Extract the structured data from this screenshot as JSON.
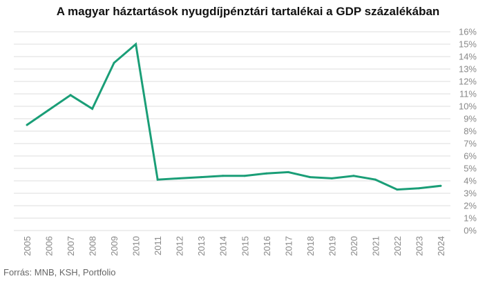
{
  "chart_data": {
    "type": "line",
    "title": "A magyar háztartások nyugdíjpénztári tartalékai a GDP százalékában",
    "source": "Forrás: MNB, KSH, Portfolio",
    "x": [
      "2005",
      "2006",
      "2007",
      "2008",
      "2009",
      "2010",
      "2011",
      "2012",
      "2013",
      "2014",
      "2015",
      "2016",
      "2017",
      "2018",
      "2019",
      "2020",
      "2021",
      "2022",
      "2023",
      "2024"
    ],
    "series": [
      {
        "values": [
          8.5,
          9.7,
          10.9,
          9.8,
          13.5,
          15.0,
          4.1,
          4.2,
          4.3,
          4.4,
          4.4,
          4.6,
          4.7,
          4.3,
          4.2,
          4.4,
          4.1,
          3.3,
          3.4,
          3.6
        ]
      }
    ],
    "y_ticks": [
      "0%",
      "1%",
      "2%",
      "3%",
      "4%",
      "5%",
      "6%",
      "7%",
      "8%",
      "9%",
      "10%",
      "11%",
      "12%",
      "13%",
      "14%",
      "15%",
      "16%"
    ],
    "ylim": [
      0,
      16
    ],
    "yaxis_position": "right",
    "grid": true,
    "line_color": "#1a9e77",
    "grid_color": "#dddddd"
  }
}
